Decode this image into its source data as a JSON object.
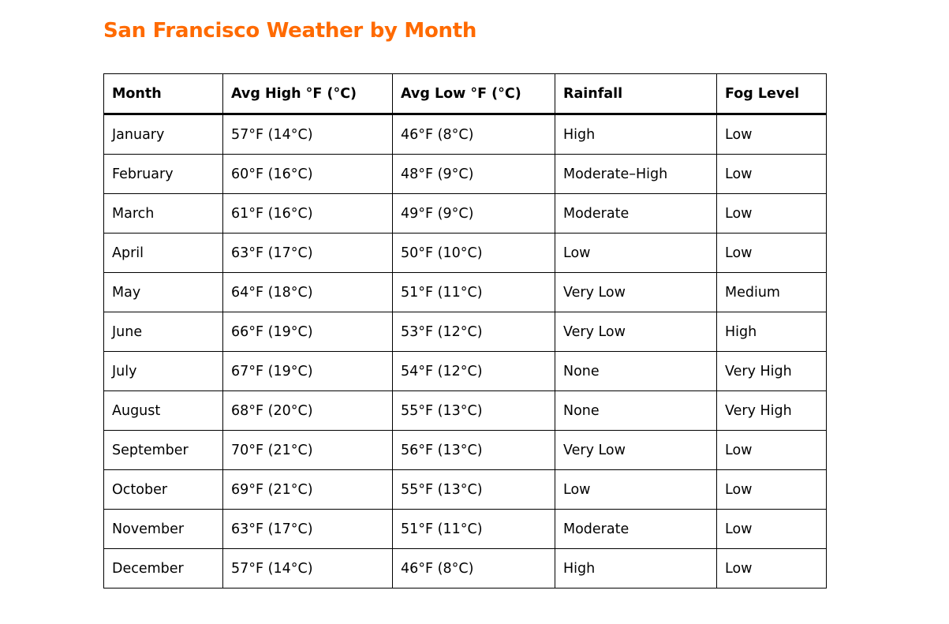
{
  "title": "San Francisco Weather by Month",
  "title_color": "#ff6a00",
  "table": {
    "headers": [
      "Month",
      "Avg High °F (°C)",
      "Avg Low °F (°C)",
      "Rainfall",
      "Fog Level"
    ],
    "rows": [
      [
        "January",
        "57°F (14°C)",
        "46°F (8°C)",
        "High",
        "Low"
      ],
      [
        "February",
        "60°F (16°C)",
        "48°F (9°C)",
        "Moderate–High",
        "Low"
      ],
      [
        "March",
        "61°F (16°C)",
        "49°F (9°C)",
        "Moderate",
        "Low"
      ],
      [
        "April",
        "63°F (17°C)",
        "50°F (10°C)",
        "Low",
        "Low"
      ],
      [
        "May",
        "64°F (18°C)",
        "51°F (11°C)",
        "Very Low",
        "Medium"
      ],
      [
        "June",
        "66°F (19°C)",
        "53°F (12°C)",
        "Very Low",
        "High"
      ],
      [
        "July",
        "67°F (19°C)",
        "54°F (12°C)",
        "None",
        "Very High"
      ],
      [
        "August",
        "68°F (20°C)",
        "55°F (13°C)",
        "None",
        "Very High"
      ],
      [
        "September",
        "70°F (21°C)",
        "56°F (13°C)",
        "Very Low",
        "Low"
      ],
      [
        "October",
        "69°F (21°C)",
        "55°F (13°C)",
        "Low",
        "Low"
      ],
      [
        "November",
        "63°F (17°C)",
        "51°F (11°C)",
        "Moderate",
        "Low"
      ],
      [
        "December",
        "57°F (14°C)",
        "46°F (8°C)",
        "High",
        "Low"
      ]
    ]
  }
}
